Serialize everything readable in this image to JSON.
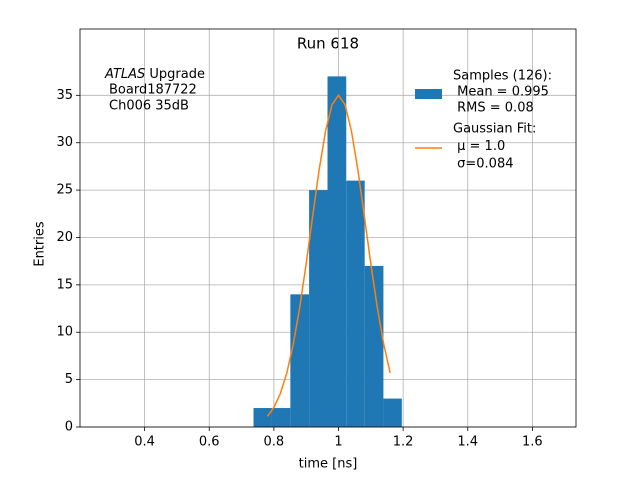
{
  "chart_data": {
    "type": "histogram",
    "title": "Run 618",
    "xlabel": "time [ns]",
    "ylabel": "Entries",
    "bins": [
      0.737,
      0.794,
      0.851,
      0.909,
      0.966,
      1.024,
      1.081,
      1.139,
      1.196
    ],
    "counts": [
      2,
      2,
      14,
      25,
      37,
      26,
      17,
      3
    ],
    "hist_color": "#1f77b4",
    "hist_legend": [
      "Samples (126):",
      " Mean = 0.995",
      " RMS = 0.08"
    ],
    "fit": {
      "type": "line",
      "color": "#ff7f0e",
      "legend": [
        "Gaussian Fit:",
        " μ = 1.0",
        " σ=0.084"
      ],
      "x": [
        0.78,
        0.8,
        0.82,
        0.84,
        0.86,
        0.88,
        0.9,
        0.92,
        0.94,
        0.96,
        0.98,
        1.0,
        1.02,
        1.04,
        1.06,
        1.08,
        1.1,
        1.12,
        1.14,
        1.16
      ],
      "values": [
        1.13,
        2.06,
        3.52,
        5.7,
        8.73,
        12.62,
        17.23,
        22.24,
        27.12,
        31.25,
        34.02,
        35,
        34.02,
        31.25,
        27.12,
        22.24,
        17.23,
        12.62,
        8.73,
        5.7
      ]
    },
    "annotation": {
      "italic": "ATLAS",
      "lines": [
        " Upgrade",
        "Board187722",
        "Ch006 35dB"
      ]
    },
    "xlim": [
      0.2,
      1.735
    ],
    "ylim": [
      0,
      42
    ],
    "xticks": [
      0.4,
      0.6,
      0.8,
      1.0,
      1.2,
      1.4,
      1.6
    ],
    "yticks": [
      0,
      5,
      10,
      15,
      20,
      25,
      30,
      35
    ],
    "grid": true
  }
}
